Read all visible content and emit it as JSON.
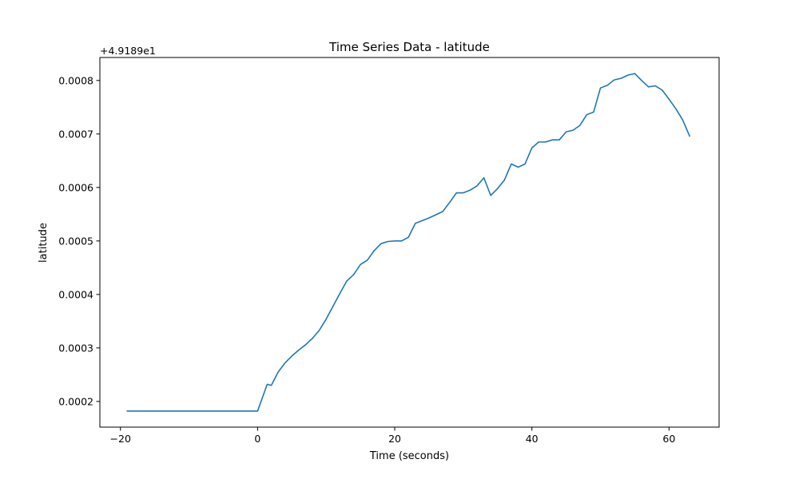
{
  "chart_data": {
    "type": "line",
    "title": "Time Series Data - latitude",
    "xlabel": "Time (seconds)",
    "ylabel": "latitude",
    "y_offset_label": "+4.9189e1",
    "xlim": [
      -23,
      67.3
    ],
    "ylim": [
      0.000152,
      0.000843
    ],
    "x_ticks": [
      -20,
      0,
      20,
      40,
      60
    ],
    "x_tick_labels": [
      "−20",
      "0",
      "20",
      "40",
      "60"
    ],
    "y_ticks": [
      0.0002,
      0.0003,
      0.0004,
      0.0005,
      0.0006,
      0.0007,
      0.0008
    ],
    "y_tick_labels": [
      "0.0002",
      "0.0003",
      "0.0004",
      "0.0005",
      "0.0006",
      "0.0007",
      "0.0008"
    ],
    "grid": false,
    "line_color": "#1f77b4",
    "series": [
      {
        "x": [
          -19,
          -15,
          -10,
          -5,
          0,
          1.4,
          2,
          3,
          4,
          5,
          6,
          7,
          8,
          9,
          10,
          11,
          12,
          13,
          14,
          15,
          16,
          17,
          18,
          19,
          20,
          21,
          22,
          23,
          24,
          25,
          26,
          27,
          28,
          29,
          30,
          31,
          32,
          33,
          34,
          35,
          36,
          37,
          38,
          39,
          40,
          41,
          42,
          43,
          44,
          45,
          46,
          47,
          48,
          49,
          50,
          51,
          52,
          53,
          54,
          55,
          56,
          57,
          58,
          59,
          60,
          61,
          62,
          63
        ],
        "y": [
          0.000182,
          0.000182,
          0.000182,
          0.000182,
          0.000182,
          0.000232,
          0.00023,
          0.000255,
          0.000272,
          0.000285,
          0.000296,
          0.000306,
          0.000318,
          0.000333,
          0.000354,
          0.000378,
          0.000402,
          0.000425,
          0.000437,
          0.000456,
          0.000464,
          0.000482,
          0.000495,
          0.000499,
          0.0005,
          0.0005,
          0.000507,
          0.000533,
          0.000538,
          0.000543,
          0.000549,
          0.000555,
          0.000572,
          0.00059,
          0.00059,
          0.000595,
          0.000603,
          0.000618,
          0.000585,
          0.000598,
          0.000614,
          0.000644,
          0.000638,
          0.000644,
          0.000674,
          0.000685,
          0.000685,
          0.000689,
          0.000689,
          0.000704,
          0.000707,
          0.000716,
          0.000736,
          0.000741,
          0.000786,
          0.000791,
          0.000801,
          0.000804,
          0.00081,
          0.000813,
          0.0008,
          0.000788,
          0.00079,
          0.000782,
          0.000765,
          0.000747,
          0.000726,
          0.000696
        ]
      }
    ]
  }
}
